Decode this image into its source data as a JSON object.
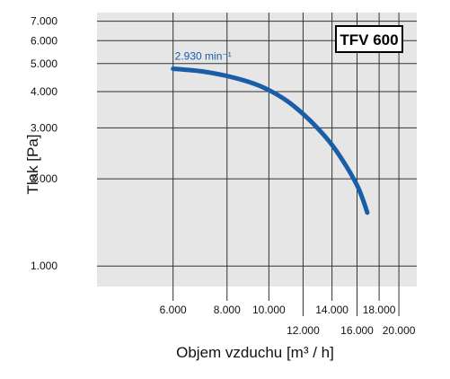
{
  "chart_data": {
    "type": "line",
    "title": "",
    "model_label": "TFV 600",
    "xlabel": "Objem vzduchu [m³ / h]",
    "ylabel": "Tlak [Pa]",
    "x_scale": "log",
    "y_scale": "log",
    "xlim": [
      4000,
      22000
    ],
    "ylim": [
      850,
      7500
    ],
    "grid": true,
    "x_ticks_row1": [
      "6.000",
      "8.000",
      "10.000",
      "14.000",
      "18.000"
    ],
    "x_ticks_row1_values": [
      6000,
      8000,
      10000,
      14000,
      18000
    ],
    "x_ticks_row2": [
      "12.000",
      "16.000",
      "20.000"
    ],
    "x_ticks_row2_values": [
      12000,
      16000,
      20000
    ],
    "y_ticks": [
      "1.000",
      "2.000",
      "3.000",
      "4.000",
      "5.000",
      "6.000",
      "7.000"
    ],
    "y_tick_values": [
      1000,
      2000,
      3000,
      4000,
      5000,
      6000,
      7000
    ],
    "series": [
      {
        "name": "",
        "color": "#1b5ea8",
        "x": [
          6000,
          7000,
          8000,
          9000,
          10000,
          11000,
          12000,
          13000,
          14000,
          15000,
          16000,
          16500,
          16900
        ],
        "y": [
          4800,
          4700,
          4530,
          4320,
          4050,
          3720,
          3350,
          2980,
          2620,
          2250,
          1900,
          1700,
          1530
        ]
      }
    ],
    "annotations": [
      {
        "text": "2.930 min⁻¹",
        "x": 6000,
        "y": 4800
      }
    ]
  }
}
